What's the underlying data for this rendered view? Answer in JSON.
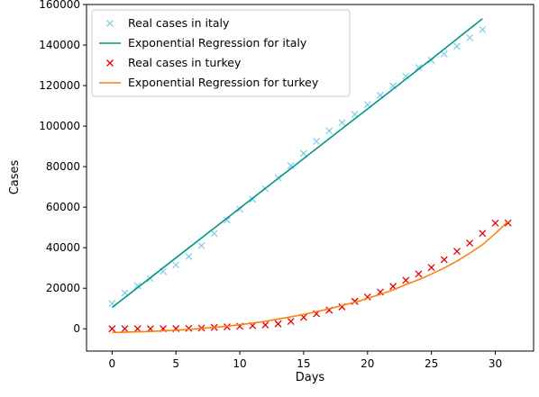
{
  "chart_data": {
    "type": "line",
    "title": "",
    "xlabel": "Days",
    "ylabel": "Cases",
    "xlim": [
      -2,
      33
    ],
    "ylim": [
      -11000,
      160000
    ],
    "grid": false,
    "legend_placement": "top-left",
    "x_ticks": [
      0,
      5,
      10,
      15,
      20,
      25,
      30
    ],
    "y_ticks": [
      0,
      20000,
      40000,
      60000,
      80000,
      100000,
      120000,
      140000,
      160000
    ],
    "series": [
      {
        "name": "Real cases in italy",
        "kind": "marker",
        "marker": "x",
        "color": "#87ceeb",
        "x": [
          0,
          1,
          2,
          3,
          4,
          5,
          6,
          7,
          8,
          9,
          10,
          11,
          12,
          13,
          14,
          15,
          16,
          17,
          18,
          19,
          20,
          21,
          22,
          23,
          24,
          25,
          26,
          27,
          28,
          29
        ],
        "y": [
          12500,
          17700,
          21200,
          24800,
          28300,
          31500,
          35700,
          41000,
          47000,
          53600,
          59100,
          63900,
          69200,
          74400,
          80500,
          86500,
          92500,
          97700,
          101700,
          105800,
          110600,
          115200,
          119800,
          124600,
          128900,
          132500,
          135600,
          139400,
          143600,
          147600
        ]
      },
      {
        "name": "Exponential Regression for italy",
        "kind": "line",
        "color": "#009688",
        "x": [
          0,
          5,
          10,
          15,
          20,
          25,
          29
        ],
        "y": [
          10500,
          35000,
          59500,
          84000,
          108500,
          133000,
          153000
        ]
      },
      {
        "name": "Real cases in turkey",
        "kind": "marker",
        "marker": "x",
        "color": "#e00000",
        "x": [
          0,
          1,
          2,
          3,
          4,
          5,
          6,
          7,
          8,
          9,
          10,
          11,
          12,
          13,
          14,
          15,
          16,
          17,
          18,
          19,
          20,
          21,
          22,
          23,
          24,
          25,
          26,
          27,
          28,
          29,
          30,
          31
        ],
        "y": [
          1,
          5,
          6,
          18,
          47,
          98,
          191,
          359,
          670,
          947,
          1236,
          1529,
          1872,
          2433,
          3629,
          5698,
          7402,
          9217,
          10827,
          13531,
          15679,
          18135,
          20921,
          23934,
          27069,
          30217,
          34109,
          38226,
          42282,
          47029,
          52167,
          52200
        ]
      },
      {
        "name": "Exponential Regression for turkey",
        "kind": "line",
        "color": "#ff7f0e",
        "x": [
          0,
          1,
          2,
          3,
          4,
          5,
          6,
          7,
          8,
          9,
          10,
          11,
          12,
          13,
          14,
          15,
          16,
          17,
          18,
          19,
          20,
          21,
          22,
          23,
          24,
          25,
          26,
          27,
          28,
          29,
          30,
          31
        ],
        "y": [
          -1800,
          -1700,
          -1500,
          -1300,
          -1000,
          -700,
          -300,
          200,
          700,
          1300,
          2000,
          2800,
          3700,
          4800,
          5900,
          7100,
          8400,
          9900,
          11500,
          13100,
          15000,
          17000,
          19200,
          21800,
          24200,
          27000,
          30000,
          33400,
          37300,
          41500,
          47000,
          53000
        ]
      }
    ]
  }
}
